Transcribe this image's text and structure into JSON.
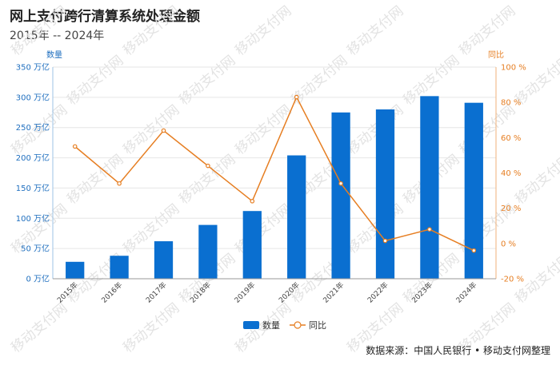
{
  "title": "网上支付跨行清算系统处理金额",
  "subtitle": "2015年 -- 2024年",
  "source": "数据来源：中国人民银行 • 移动支付网整理",
  "watermark": "移动支付网",
  "colors": {
    "bar": "#0a6fd0",
    "line": "#e67e22",
    "grid": "#e6e6e6"
  },
  "chart_data": {
    "type": "bar",
    "categories": [
      "2015年",
      "2016年",
      "2017年",
      "2018年",
      "2019年",
      "2020年",
      "2021年",
      "2022年",
      "2023年",
      "2024年"
    ],
    "series": [
      {
        "name": "数量",
        "type": "bar",
        "axis": "left",
        "values": [
          28,
          38,
          62,
          89,
          112,
          204,
          275,
          280,
          302,
          291
        ]
      },
      {
        "name": "同比",
        "type": "line",
        "axis": "right",
        "values": [
          55,
          34,
          64,
          44,
          24,
          83,
          34,
          1.5,
          8,
          -4
        ]
      }
    ],
    "left_axis": {
      "label": "数量",
      "unit": "万亿",
      "ylim": [
        0,
        350
      ],
      "ticks": [
        0,
        50,
        100,
        150,
        200,
        250,
        300,
        350
      ]
    },
    "right_axis": {
      "label": "同比",
      "unit": "%",
      "ylim": [
        -20,
        100
      ],
      "ticks": [
        -20,
        0,
        20,
        40,
        60,
        80,
        100
      ]
    },
    "legend": [
      "数量",
      "同比"
    ],
    "legend_position": "bottom",
    "grid": true
  }
}
